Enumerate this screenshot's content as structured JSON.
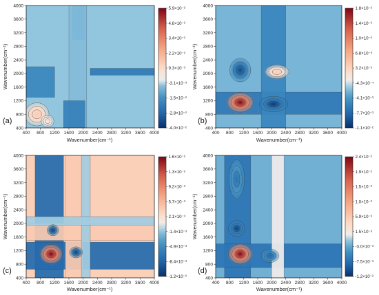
{
  "chart_data": [
    {
      "type": "heatmap",
      "panel_label": "(a)",
      "xlabel": "Wavenumber(cm⁻¹)",
      "ylabel": "Wavenumber(cm⁻¹)",
      "xlim": [
        400,
        4000
      ],
      "ylim": [
        400,
        4000
      ],
      "x_ticks": [
        "400",
        "800",
        "1200",
        "1600",
        "2000",
        "2400",
        "2800",
        "3200",
        "3600",
        "4000"
      ],
      "y_ticks": [
        "400",
        "800",
        "1200",
        "1600",
        "2000",
        "2400",
        "2800",
        "3200",
        "3600",
        "4000"
      ],
      "colorbar": {
        "min": -0.04,
        "max": 0.059,
        "tick_labels": [
          "5.9×10⁻²",
          "4.6×10⁻²",
          "3.4×10⁻²",
          "2.2×10⁻²",
          "9.3×10⁻³",
          "-3.1×10⁻³",
          "-1.5×10⁻²",
          "-2.8×10⁻²",
          "-4.0×10⁻²"
        ]
      },
      "background_value": -0.004,
      "features": [
        {
          "shape": "rect",
          "x": [
            1700,
            2050
          ],
          "y": [
            3000,
            4000
          ],
          "value": -0.015
        },
        {
          "shape": "rect",
          "x": [
            1600,
            2100
          ],
          "y": [
            400,
            4000
          ],
          "value": -0.006
        },
        {
          "shape": "rect",
          "x": [
            2200,
            4000
          ],
          "y": [
            1950,
            2150
          ],
          "value": -0.022
        },
        {
          "shape": "rect",
          "x": [
            400,
            1200
          ],
          "y": [
            1300,
            2200
          ],
          "value": -0.018
        },
        {
          "shape": "rect",
          "x": [
            1450,
            2050
          ],
          "y": [
            400,
            1200
          ],
          "value": -0.02
        },
        {
          "shape": "blob",
          "cx": 700,
          "cy": 800,
          "rx": 380,
          "ry": 380,
          "value": 0.014
        },
        {
          "shape": "blob",
          "cx": 1000,
          "cy": 600,
          "rx": 200,
          "ry": 200,
          "value": 0.006
        }
      ]
    },
    {
      "type": "heatmap",
      "panel_label": "(b)",
      "xlabel": "Wavenumber(cm⁻¹)",
      "ylabel": "Wavenumber(cm⁻¹)",
      "xlim": [
        400,
        4000
      ],
      "ylim": [
        400,
        4000
      ],
      "x_ticks": [
        "400",
        "800",
        "1200",
        "1600",
        "2000",
        "2400",
        "2800",
        "3200",
        "3600",
        "4000"
      ],
      "y_ticks": [
        "400",
        "800",
        "1200",
        "1600",
        "2000",
        "2400",
        "2800",
        "3200",
        "3600",
        "4000"
      ],
      "colorbar": {
        "min": -0.011,
        "max": 0.018,
        "tick_labels": [
          "1.8×10⁻²",
          "1.4×10⁻²",
          "1.0×10⁻²",
          "6.8×10⁻³",
          "3.2×10⁻³",
          "-4.3×10⁻⁴",
          "-4.1×10⁻³",
          "-7.7×10⁻³",
          "-1.1×10⁻²"
        ]
      },
      "background_value": -0.002,
      "features": [
        {
          "shape": "rect",
          "x": [
            400,
            4000
          ],
          "y": [
            800,
            1450
          ],
          "value": -0.006
        },
        {
          "shape": "rect",
          "x": [
            1700,
            2400
          ],
          "y": [
            400,
            4000
          ],
          "value": -0.005
        },
        {
          "shape": "blob",
          "cx": 2050,
          "cy": 1100,
          "rx": 450,
          "ry": 250,
          "value": -0.0105
        },
        {
          "shape": "blob",
          "cx": 1100,
          "cy": 1150,
          "rx": 420,
          "ry": 320,
          "value": 0.018
        },
        {
          "shape": "blob",
          "cx": 2150,
          "cy": 2050,
          "rx": 380,
          "ry": 230,
          "value": 0.004
        },
        {
          "shape": "blob",
          "cx": 1100,
          "cy": 2100,
          "rx": 330,
          "ry": 380,
          "value": -0.0095
        }
      ]
    },
    {
      "type": "heatmap",
      "panel_label": "(c)",
      "xlabel": "Wavenumber(cm⁻¹)",
      "ylabel": "Wavenumber(cm⁻¹)",
      "xlim": [
        400,
        4000
      ],
      "ylim": [
        400,
        4000
      ],
      "x_ticks": [
        "400",
        "800",
        "1200",
        "1600",
        "2000",
        "2400",
        "2800",
        "3200",
        "3600",
        "4000"
      ],
      "y_ticks": [
        "400",
        "800",
        "1200",
        "1600",
        "2000",
        "2400",
        "2800",
        "3200",
        "3600",
        "4000"
      ],
      "colorbar": {
        "min": -0.012,
        "max": 0.016,
        "tick_labels": [
          "1.6×10⁻²",
          "1.3×10⁻²",
          "9.2×10⁻³",
          "5.7×10⁻³",
          "2.1×10⁻³",
          "-1.4×10⁻³",
          "-4.9×10⁻³",
          "-8.4×10⁻³",
          "-1.2×10⁻²"
        ]
      },
      "background_value": 0.0035,
      "features": [
        {
          "shape": "rect",
          "x": [
            650,
            1450
          ],
          "y": [
            400,
            4000
          ],
          "value": -0.008
        },
        {
          "shape": "rect",
          "x": [
            400,
            4000
          ],
          "y": [
            650,
            1450
          ],
          "value": -0.008
        },
        {
          "shape": "rect",
          "x": [
            1500,
            2000
          ],
          "y": [
            400,
            4000
          ],
          "value": 0.004
        },
        {
          "shape": "rect",
          "x": [
            400,
            4000
          ],
          "y": [
            1500,
            2000
          ],
          "value": 0.004
        },
        {
          "shape": "rect",
          "x": [
            1950,
            2200
          ],
          "y": [
            400,
            4000
          ],
          "value": -0.001
        },
        {
          "shape": "rect",
          "x": [
            400,
            4000
          ],
          "y": [
            1950,
            2200
          ],
          "value": -0.001
        },
        {
          "shape": "blob",
          "cx": 1100,
          "cy": 1100,
          "rx": 350,
          "ry": 320,
          "value": 0.016
        },
        {
          "shape": "blob",
          "cx": 1150,
          "cy": 1800,
          "rx": 180,
          "ry": 180,
          "value": -0.011
        },
        {
          "shape": "blob",
          "cx": 1800,
          "cy": 1150,
          "rx": 200,
          "ry": 180,
          "value": -0.011
        }
      ]
    },
    {
      "type": "heatmap",
      "panel_label": "(d)",
      "xlabel": "Wavenumber(cm⁻¹)",
      "ylabel": "Wavenumber(cm⁻¹)",
      "xlim": [
        400,
        4000
      ],
      "ylim": [
        400,
        4000
      ],
      "x_ticks": [
        "400",
        "800",
        "1200",
        "1600",
        "2000",
        "2400",
        "2800",
        "3200",
        "3600",
        "4000"
      ],
      "y_ticks": [
        "400",
        "800",
        "1200",
        "1600",
        "2000",
        "2400",
        "2800",
        "3200",
        "3600",
        "4000"
      ],
      "colorbar": {
        "min": -0.012,
        "max": 0.024,
        "tick_labels": [
          "2.4×10⁻²",
          "1.9×10⁻²",
          "1.5×10⁻²",
          "1.0×10⁻²",
          "5.9×10⁻³",
          "1.5×10⁻³",
          "-3.0×10⁻³",
          "-7.5×10⁻³",
          "-1.2×10⁻²"
        ]
      },
      "background_value": -0.0025,
      "features": [
        {
          "shape": "rect",
          "x": [
            650,
            1400
          ],
          "y": [
            400,
            4000
          ],
          "value": -0.007
        },
        {
          "shape": "rect",
          "x": [
            400,
            4000
          ],
          "y": [
            700,
            1400
          ],
          "value": -0.007
        },
        {
          "shape": "rect",
          "x": [
            2000,
            2350
          ],
          "y": [
            400,
            4000
          ],
          "value": 0.0005
        },
        {
          "shape": "blob",
          "cx": 1100,
          "cy": 1100,
          "rx": 380,
          "ry": 330,
          "value": 0.024
        },
        {
          "shape": "blob",
          "cx": 1950,
          "cy": 1050,
          "rx": 280,
          "ry": 220,
          "value": -0.0085
        },
        {
          "shape": "blob",
          "cx": 1000,
          "cy": 1850,
          "rx": 260,
          "ry": 260,
          "value": -0.011
        },
        {
          "shape": "blob",
          "cx": 1000,
          "cy": 3300,
          "rx": 250,
          "ry": 650,
          "value": -0.0075
        }
      ]
    }
  ]
}
